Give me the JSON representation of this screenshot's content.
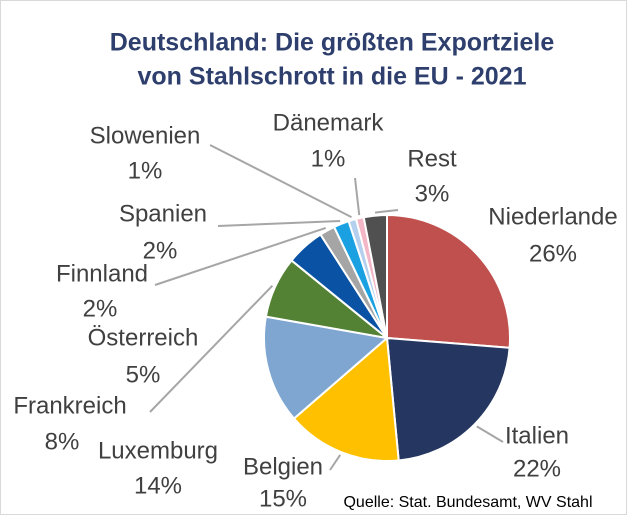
{
  "chart_data": {
    "type": "pie",
    "title": [
      "Deutschland: Die größten Exportziele",
      "von Stahlschrott in die EU - 2021"
    ],
    "categories": [
      "Niederlande",
      "Italien",
      "Belgien",
      "Luxemburg",
      "Frankreich",
      "Österreich",
      "Finnland",
      "Spanien",
      "Slowenien",
      "Dänemark",
      "Rest"
    ],
    "values": [
      26,
      22,
      15,
      14,
      8,
      5,
      2,
      2,
      1,
      1,
      3
    ],
    "value_labels": [
      "26%",
      "22%",
      "15%",
      "14%",
      "8%",
      "5%",
      "2%",
      "2%",
      "1%",
      "1%",
      "3%"
    ],
    "colors": [
      "#c0504d",
      "#253760",
      "#ffc000",
      "#7ea6d1",
      "#538234",
      "#0a52a3",
      "#a5a5a5",
      "#1ba1e2",
      "#b4d0ee",
      "#f2b6c6",
      "#505050"
    ],
    "source": "Quelle: Stat. Bundesamt, WV Stahl"
  }
}
